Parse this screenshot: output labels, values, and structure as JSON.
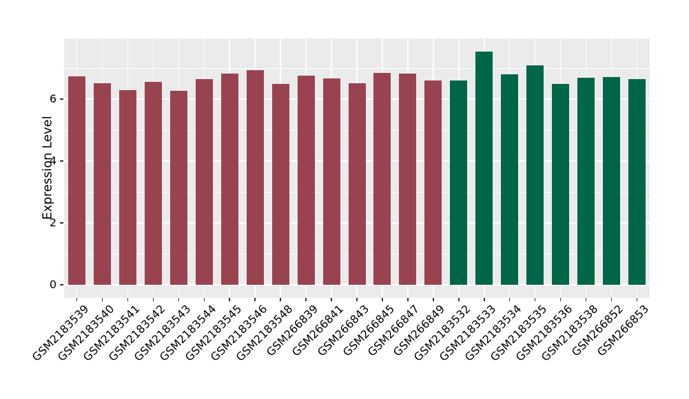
{
  "chart_data": {
    "type": "bar",
    "title": "",
    "xlabel": "",
    "ylabel": "Expression Level",
    "yticks": [
      0,
      2,
      4,
      6
    ],
    "minor_yticks": [
      1,
      3,
      5,
      7
    ],
    "ylim": [
      -0.44,
      7.93
    ],
    "grid": true,
    "legend": false,
    "categories": [
      "GSM2183539",
      "GSM2183540",
      "GSM2183541",
      "GSM2183542",
      "GSM2183543",
      "GSM2183544",
      "GSM2183545",
      "GSM2183546",
      "GSM2183548",
      "GSM266839",
      "GSM266841",
      "GSM266843",
      "GSM266845",
      "GSM266847",
      "GSM266849",
      "GSM2183532",
      "GSM2183533",
      "GSM2183534",
      "GSM2183535",
      "GSM2183536",
      "GSM2183538",
      "GSM266852",
      "GSM266853"
    ],
    "values": [
      6.74,
      6.51,
      6.3,
      6.55,
      6.27,
      6.64,
      6.82,
      6.94,
      6.49,
      6.76,
      6.66,
      6.51,
      6.84,
      6.82,
      6.6,
      6.59,
      7.53,
      6.81,
      7.1,
      6.48,
      6.7,
      6.71,
      6.65
    ],
    "bar_group_keys": [
      "red",
      "red",
      "red",
      "red",
      "red",
      "red",
      "red",
      "red",
      "red",
      "red",
      "red",
      "red",
      "red",
      "red",
      "red",
      "green",
      "green",
      "green",
      "green",
      "green",
      "green",
      "green",
      "green"
    ],
    "group_colors": {
      "red": "#9A4350",
      "green": "#006649"
    },
    "panel_bg": "#EBEBEB",
    "grid_color": "#FFFFFF",
    "tick_mark_color": "#333333",
    "axis_text_color": "#000000"
  }
}
